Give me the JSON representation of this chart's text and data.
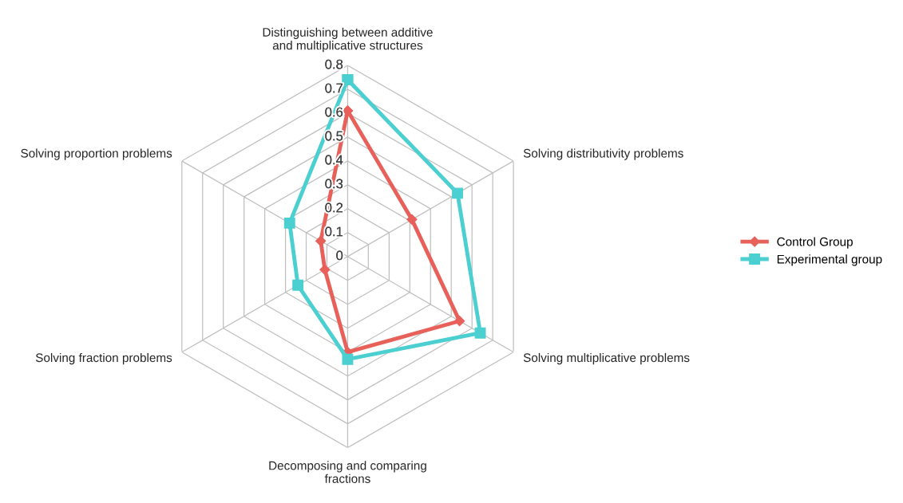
{
  "chart_data": {
    "type": "radar",
    "categories": [
      "Distinguishing between additive and multiplicative structures",
      "Solving distributivity problems",
      "Solving multiplicative problems",
      "Decomposing and comparing fractions",
      "Solving fraction problems",
      "Solving proportion problems"
    ],
    "series": [
      {
        "name": "Control Group",
        "color": "#e8605a",
        "marker": "diamond",
        "values": [
          0.61,
          0.31,
          0.54,
          0.4,
          0.11,
          0.13
        ]
      },
      {
        "name": "Experimental group",
        "color": "#4bcfd1",
        "marker": "square",
        "values": [
          0.74,
          0.53,
          0.64,
          0.43,
          0.24,
          0.28
        ]
      }
    ],
    "ylim": [
      0,
      0.8
    ],
    "yticks": [
      0,
      0.1,
      0.2,
      0.3,
      0.4,
      0.5,
      0.6,
      0.7,
      0.8
    ],
    "grid": true,
    "legend": "right"
  }
}
